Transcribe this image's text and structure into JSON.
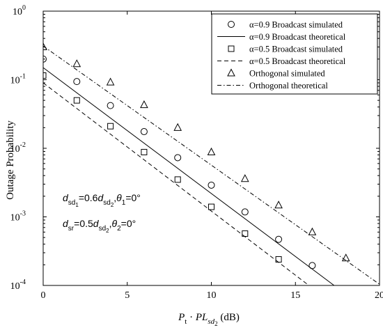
{
  "chart_data": {
    "type": "line",
    "xlabel": {
      "main": "P",
      "main_sub": "t",
      "dot": "·",
      "pl": "PL",
      "pl_sub": "sd",
      "pl_subsub": "2",
      "unit": "(dB)"
    },
    "ylabel": "Outage Probability",
    "xlim": [
      0,
      20
    ],
    "ylim": [
      0.0001,
      1
    ],
    "yscale": "log",
    "x_ticks": [
      "0",
      "5",
      "10",
      "15",
      "20"
    ],
    "y_ticks": [
      {
        "base": "10",
        "exp": "0",
        "value": 1
      },
      {
        "base": "10",
        "exp": "-1",
        "value": 0.1
      },
      {
        "base": "10",
        "exp": "-2",
        "value": 0.01
      },
      {
        "base": "10",
        "exp": "-3",
        "value": 0.001
      },
      {
        "base": "10",
        "exp": "-4",
        "value": 0.0001
      }
    ],
    "legend_position": "top-right",
    "series": [
      {
        "name": "α=0.9 Broadcast simulated",
        "marker": "circle",
        "x": [
          0,
          2,
          4,
          6,
          8,
          10,
          12,
          14,
          16
        ],
        "y": [
          0.2,
          0.094,
          0.042,
          0.0175,
          0.0073,
          0.0029,
          0.00118,
          0.00047,
          0.000195
        ]
      },
      {
        "name": "α=0.9 Broadcast theoretical",
        "line": "solid",
        "x": [
          0,
          17.3
        ],
        "y": [
          0.15,
          0.0001
        ]
      },
      {
        "name": "α=0.5 Broadcast simulated",
        "marker": "square",
        "x": [
          0,
          2,
          4,
          6,
          8,
          10,
          12,
          14
        ],
        "y": [
          0.115,
          0.05,
          0.021,
          0.0088,
          0.0035,
          0.0014,
          0.00057,
          0.00024
        ]
      },
      {
        "name": "α=0.5 Broadcast theoretical",
        "line": "dashed",
        "x": [
          0,
          15.8
        ],
        "y": [
          0.09,
          0.0001
        ]
      },
      {
        "name": "Orthogonal simulated",
        "marker": "triangle",
        "x": [
          0,
          2,
          4,
          6,
          8,
          10,
          12,
          14,
          16,
          18
        ],
        "y": [
          0.3,
          0.17,
          0.092,
          0.043,
          0.02,
          0.0088,
          0.0036,
          0.00148,
          0.0006,
          0.00025
        ]
      },
      {
        "name": "Orthogonal theoretical",
        "line": "dashdot",
        "x": [
          0,
          20
        ],
        "y": [
          0.31,
          0.000104
        ]
      }
    ],
    "annotations": [
      {
        "parts": [
          [
            "d",
            "it"
          ],
          [
            "sd",
            "sub"
          ],
          [
            "1",
            "subsub"
          ],
          [
            "=0.6",
            "n"
          ],
          [
            "d",
            "it"
          ],
          [
            "sd",
            "sub"
          ],
          [
            "2",
            "subsub"
          ],
          [
            ",",
            "n"
          ],
          [
            "θ",
            "it"
          ],
          [
            "1",
            "sub"
          ],
          [
            "=0",
            "n"
          ],
          [
            "°",
            "n"
          ]
        ]
      },
      {
        "parts": [
          [
            "d",
            "it"
          ],
          [
            "sr",
            "sub"
          ],
          [
            "=0.5",
            "n"
          ],
          [
            "d",
            "it"
          ],
          [
            "sd",
            "sub"
          ],
          [
            "2",
            "subsub"
          ],
          [
            ",",
            "n"
          ],
          [
            "θ",
            "it"
          ],
          [
            "2",
            "sub"
          ],
          [
            "=0",
            "n"
          ],
          [
            "°",
            "n"
          ]
        ]
      }
    ]
  }
}
